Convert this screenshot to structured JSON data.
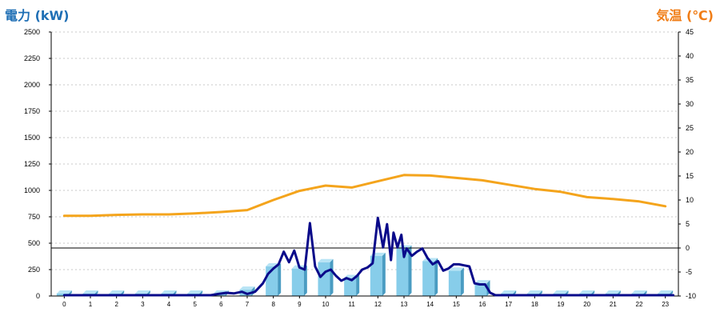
{
  "left_unit_label": "電力 (kW)",
  "right_unit_label": "気温 (℃)",
  "colors": {
    "power_axis": "#1f6fb5",
    "temp_axis": "#f07d16",
    "bar_face": "#87cdea",
    "bar_side": "#4a9cc2",
    "bar_top": "#b8e4f5",
    "power_line": "#0a0a8a",
    "temp_line": "#f4a41c",
    "grid": "#c8c8c8",
    "zero_line": "#000000"
  },
  "chart_data": {
    "type": "bar",
    "title": "",
    "categories": [
      "0",
      "1",
      "2",
      "3",
      "4",
      "5",
      "6",
      "7",
      "8",
      "9",
      "10",
      "11",
      "12",
      "13",
      "14",
      "15",
      "16",
      "17",
      "18",
      "19",
      "20",
      "21",
      "22",
      "23"
    ],
    "left_axis": {
      "label": "電力 (kW)",
      "min": 0,
      "max": 2500,
      "ticks": [
        0,
        250,
        500,
        750,
        1000,
        1250,
        1500,
        1750,
        2000,
        2250,
        2500
      ]
    },
    "right_axis": {
      "label": "気温 (℃)",
      "min": -10,
      "max": 45,
      "ticks": [
        -10,
        -5,
        0,
        5,
        10,
        15,
        20,
        25,
        30,
        35,
        40,
        45
      ]
    },
    "grid": true,
    "series": [
      {
        "kind": "bar",
        "axis": "left",
        "values": [
          0,
          0,
          0,
          0,
          0,
          0,
          0,
          60,
          280,
          260,
          320,
          170,
          380,
          450,
          330,
          240,
          120,
          0,
          0,
          0,
          0,
          0,
          0,
          0
        ]
      },
      {
        "kind": "line",
        "axis": "left",
        "x": [
          0,
          0.5,
          1,
          1.5,
          2,
          2.5,
          3,
          3.5,
          4,
          4.5,
          5,
          5.3,
          5.6,
          5.9,
          6.2,
          6.5,
          6.8,
          7,
          7.3,
          7.6,
          7.8,
          8,
          8.2,
          8.4,
          8.6,
          8.8,
          9,
          9.2,
          9.4,
          9.6,
          9.8,
          10,
          10.2,
          10.4,
          10.6,
          10.8,
          11,
          11.2,
          11.4,
          11.6,
          11.8,
          12,
          12.2,
          12.35,
          12.5,
          12.6,
          12.75,
          12.9,
          13,
          13.1,
          13.3,
          13.5,
          13.7,
          13.9,
          14.1,
          14.3,
          14.5,
          14.7,
          14.9,
          15.1,
          15.3,
          15.5,
          15.7,
          15.9,
          16.1,
          16.3,
          16.5,
          16.7,
          16.9,
          17,
          18,
          19,
          20,
          21,
          22,
          23.3
        ],
        "values": [
          0,
          0,
          0,
          0,
          0,
          0,
          0,
          0,
          0,
          0,
          0,
          0,
          5,
          20,
          30,
          25,
          40,
          20,
          40,
          120,
          210,
          260,
          300,
          420,
          320,
          430,
          270,
          250,
          690,
          280,
          180,
          230,
          250,
          190,
          145,
          170,
          150,
          190,
          250,
          270,
          310,
          740,
          460,
          680,
          340,
          600,
          460,
          580,
          370,
          450,
          380,
          420,
          450,
          360,
          300,
          330,
          240,
          260,
          300,
          300,
          290,
          280,
          120,
          110,
          110,
          30,
          0,
          0,
          0,
          0,
          0,
          0,
          0,
          0,
          0,
          0
        ]
      },
      {
        "kind": "line",
        "axis": "right",
        "x": [
          0,
          1,
          2,
          3,
          4,
          5,
          6,
          7,
          8,
          9,
          10,
          11,
          12,
          13,
          14,
          15,
          16,
          17,
          18,
          19,
          20,
          21,
          22,
          23
        ],
        "values": [
          6.7,
          6.7,
          6.9,
          7.0,
          7.0,
          7.2,
          7.5,
          7.9,
          10.0,
          11.9,
          13.0,
          12.6,
          13.9,
          15.2,
          15.1,
          14.6,
          14.1,
          13.2,
          12.3,
          11.7,
          10.6,
          10.2,
          9.7,
          8.7
        ]
      }
    ]
  }
}
